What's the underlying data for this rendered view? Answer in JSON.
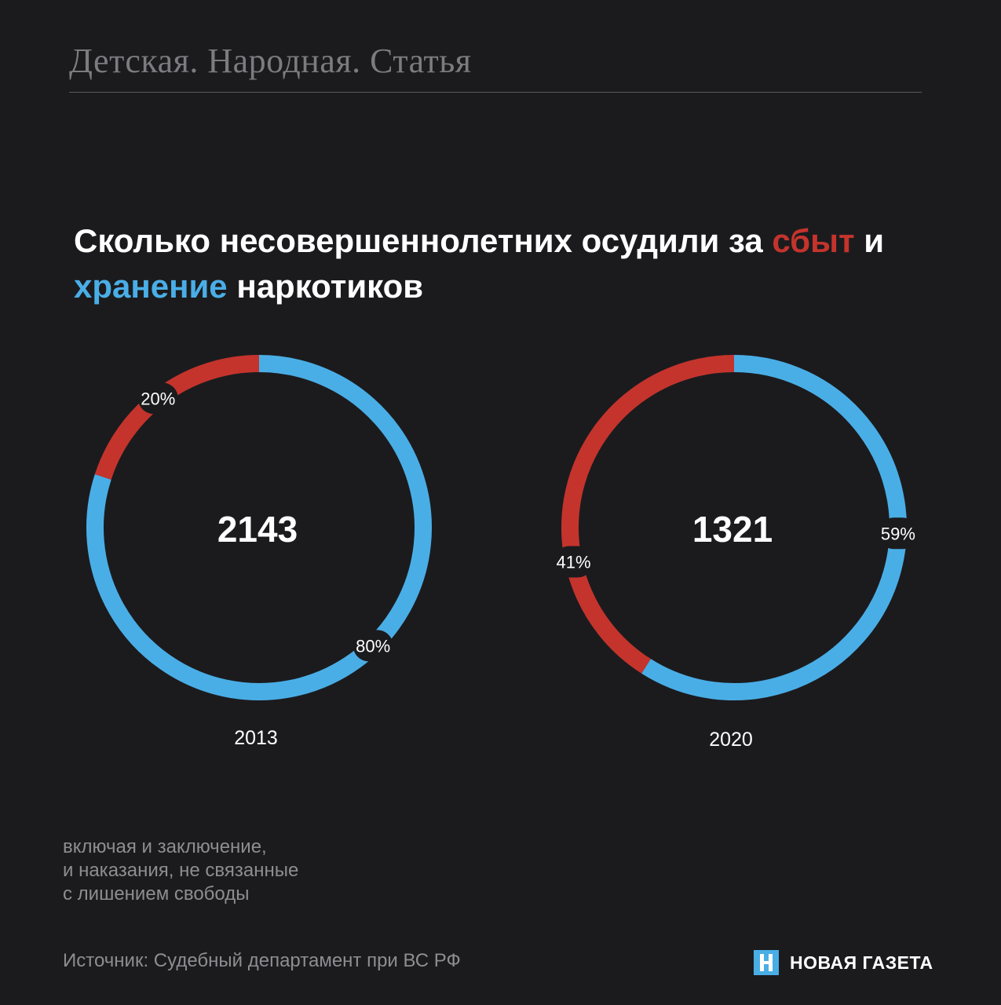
{
  "header": {
    "title": "Детская. Народная. Статья"
  },
  "title": {
    "part1": "Сколько несовершеннолетних осудили за ",
    "highlight_red": "сбыт",
    "part2": " и ",
    "highlight_blue": "хранение",
    "part3": " наркотиков"
  },
  "colors": {
    "sale": "#c4342c",
    "storage": "#4aaee6",
    "background": "#1b1b1e"
  },
  "chart_data": [
    {
      "type": "pie",
      "category": "2013",
      "total": "2143",
      "slices": [
        {
          "value": 80,
          "label": "80%",
          "color": "#4aaee6"
        },
        {
          "value": 20,
          "label": "20%",
          "color": "#c4342c"
        }
      ]
    },
    {
      "type": "pie",
      "category": "2020",
      "total": "1321",
      "slices": [
        {
          "value": 59,
          "label": "59%",
          "color": "#4aaee6"
        },
        {
          "value": 41,
          "label": "41%",
          "color": "#c4342c"
        }
      ]
    }
  ],
  "footnote": {
    "lines": [
      "включая и заключение,",
      "и наказания, не связанные",
      "с лишением свободы"
    ]
  },
  "source": "Источник: Судебный департамент при ВС РФ",
  "logo": {
    "text": "НОВАЯ ГАЗЕТА",
    "icon": "novaya-gazeta-logo-icon"
  }
}
